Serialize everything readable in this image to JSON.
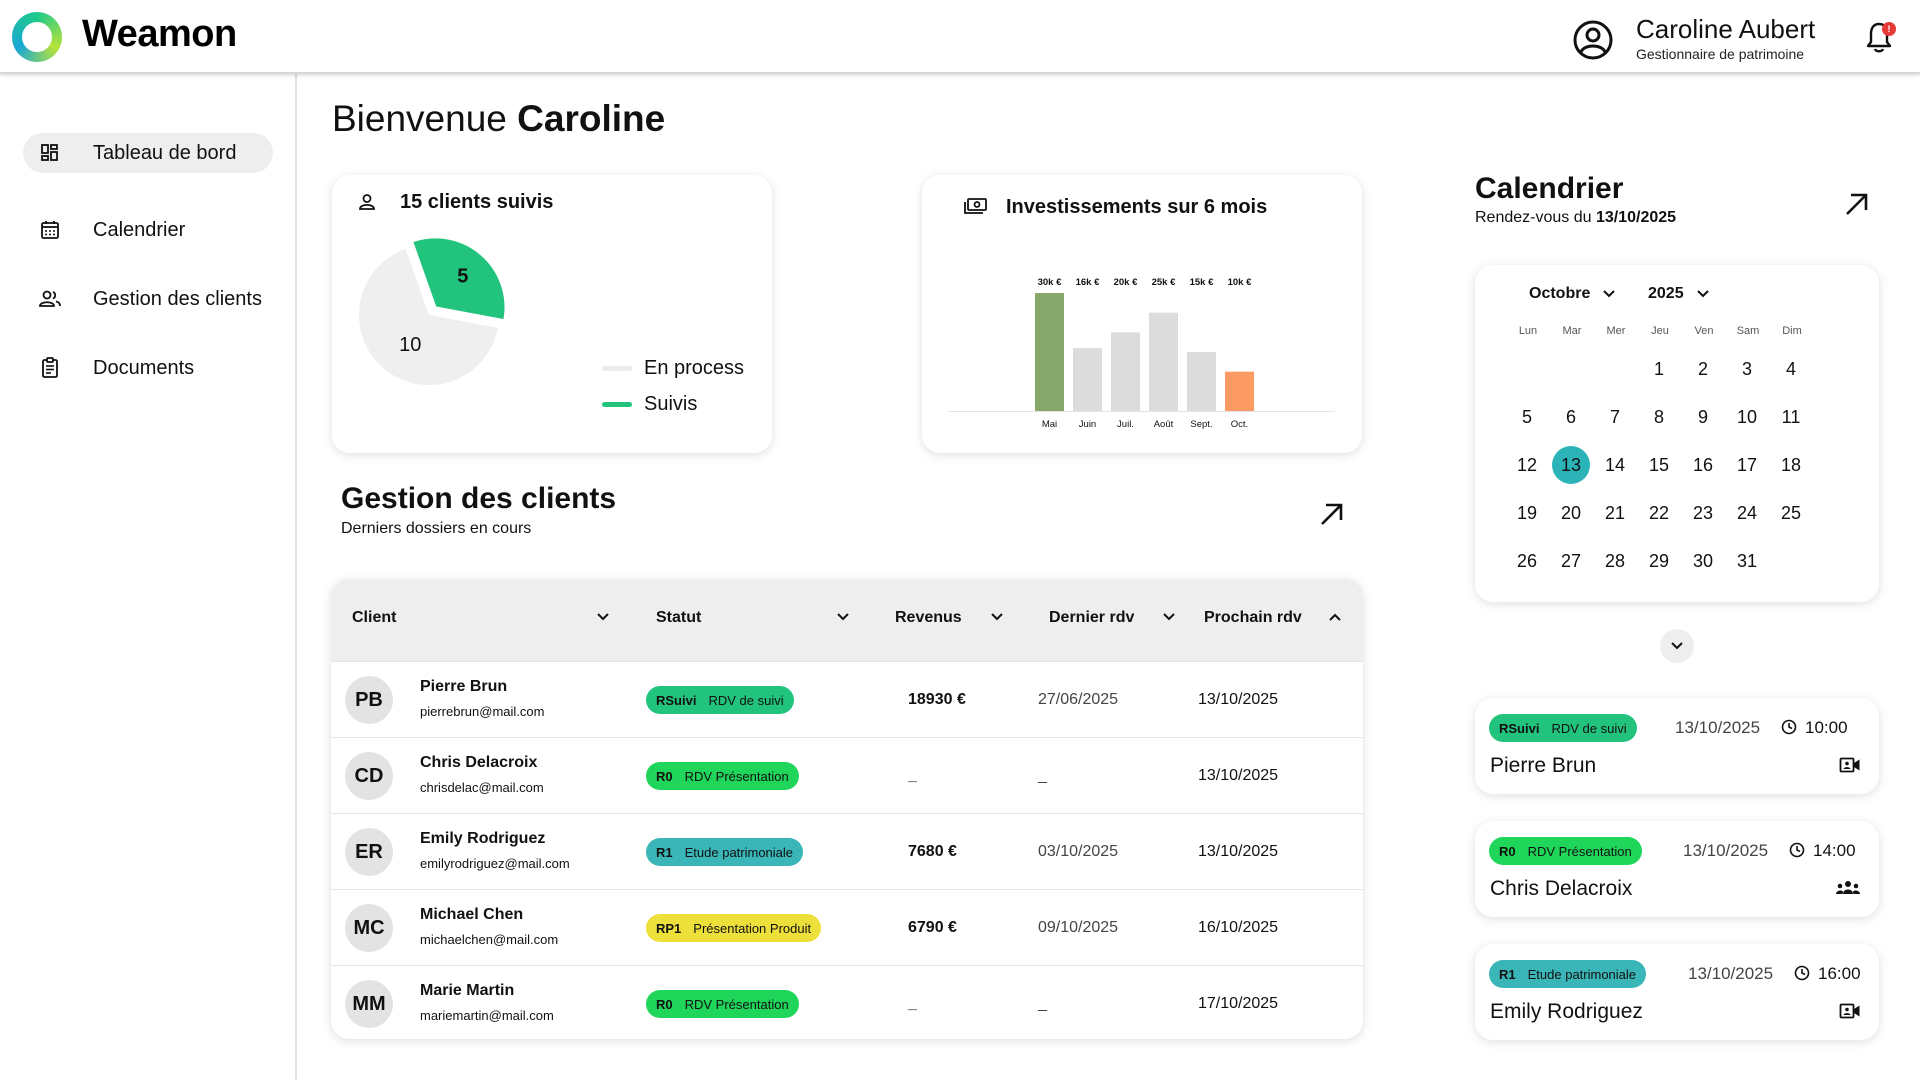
{
  "app": {
    "name": "Weamon"
  },
  "user": {
    "name": "Caroline Aubert",
    "role": "Gestionnaire de patrimoine",
    "notification_count": "!"
  },
  "sidebar": {
    "items": [
      {
        "label": "Tableau de bord",
        "icon": "dashboard-icon",
        "active": true
      },
      {
        "label": "Calendrier",
        "icon": "calendar-icon",
        "active": false
      },
      {
        "label": "Gestion des clients",
        "icon": "users-icon",
        "active": false
      },
      {
        "label": "Documents",
        "icon": "document-icon",
        "active": false
      }
    ]
  },
  "welcome": {
    "prefix": "Bienvenue",
    "name": "Caroline"
  },
  "clients_card": {
    "title": "15 clients suivis",
    "legend": [
      {
        "label": "En process",
        "color": "#ececec"
      },
      {
        "label": "Suivis",
        "color": "#22c47d"
      }
    ]
  },
  "invest_card": {
    "title": "Investissements sur 6 mois"
  },
  "chart_data": [
    {
      "type": "pie",
      "title": "15 clients suivis",
      "categories": [
        "En process",
        "Suivis"
      ],
      "values": [
        10,
        5
      ],
      "colors": [
        "#efefef",
        "#22c47d"
      ],
      "legend": "right"
    },
    {
      "type": "bar",
      "title": "Investissements sur 6 mois",
      "categories": [
        "Mai",
        "Juin",
        "Juil.",
        "Août",
        "Sept.",
        "Oct."
      ],
      "values": [
        30,
        16,
        20,
        25,
        15,
        10
      ],
      "value_labels": [
        "30k €",
        "16k €",
        "20k €",
        "25k €",
        "15k €",
        "10k €"
      ],
      "colors": [
        "#86a86d",
        "#dcdcdc",
        "#dcdcdc",
        "#dcdcdc",
        "#dcdcdc",
        "#fb9a63"
      ],
      "ylim": [
        0,
        30
      ]
    }
  ],
  "clients_section": {
    "title": "Gestion des clients",
    "subtitle": "Derniers dossiers en cours",
    "columns": [
      "Client",
      "Statut",
      "Revenus",
      "Dernier rdv",
      "Prochain rdv"
    ],
    "rows": [
      {
        "initials": "PB",
        "name": "Pierre Brun",
        "email": "pierrebrun@mail.com",
        "status_code": "RSuivi",
        "status_label": "RDV de suivi",
        "status_color": "#22c47d",
        "revenue": "18930 €",
        "last": "27/06/2025",
        "next": "13/10/2025"
      },
      {
        "initials": "CD",
        "name": "Chris Delacroix",
        "email": "chrisdelac@mail.com",
        "status_code": "R0",
        "status_label": "RDV Présentation",
        "status_color": "#1fd65a",
        "revenue": "_",
        "last": "_",
        "next": "13/10/2025"
      },
      {
        "initials": "ER",
        "name": "Emily Rodriguez",
        "email": "emilyrodriguez@mail.com",
        "status_code": "R1",
        "status_label": "Etude patrimoniale",
        "status_color": "#3ab6b8",
        "revenue": "7680 €",
        "last": "03/10/2025",
        "next": "13/10/2025"
      },
      {
        "initials": "MC",
        "name": "Michael Chen",
        "email": "michaelchen@mail.com",
        "status_code": "RP1",
        "status_label": "Présentation Produit",
        "status_color": "#ede03a",
        "revenue": "6790 €",
        "last": "09/10/2025",
        "next": "16/10/2025"
      },
      {
        "initials": "MM",
        "name": "Marie Martin",
        "email": "mariemartin@mail.com",
        "status_code": "R0",
        "status_label": "RDV Présentation",
        "status_color": "#1fd65a",
        "revenue": "_",
        "last": "_",
        "next": "17/10/2025"
      }
    ]
  },
  "calendar": {
    "title": "Calendrier",
    "subtitle_prefix": "Rendez-vous du",
    "subtitle_date": "13/10/2025",
    "month": "Octobre",
    "year": "2025",
    "weekdays": [
      "Lun",
      "Mar",
      "Mer",
      "Jeu",
      "Ven",
      "Sam",
      "Dim"
    ],
    "first_weekday_offset": 3,
    "days_in_month": 31,
    "today": 13,
    "appointments": [
      {
        "status_code": "RSuivi",
        "status_label": "RDV de suivi",
        "status_color": "#22c47d",
        "date": "13/10/2025",
        "time": "10:00",
        "name": "Pierre Brun",
        "icon": "video-icon"
      },
      {
        "status_code": "R0",
        "status_label": "RDV Présentation",
        "status_color": "#1fd65a",
        "date": "13/10/2025",
        "time": "14:00",
        "name": "Chris Delacroix",
        "icon": "meeting-group-icon"
      },
      {
        "status_code": "R1",
        "status_label": "Etude patrimoniale",
        "status_color": "#3ab6b8",
        "date": "13/10/2025",
        "time": "16:00",
        "name": "Emily Rodriguez",
        "icon": "video-icon"
      }
    ]
  }
}
